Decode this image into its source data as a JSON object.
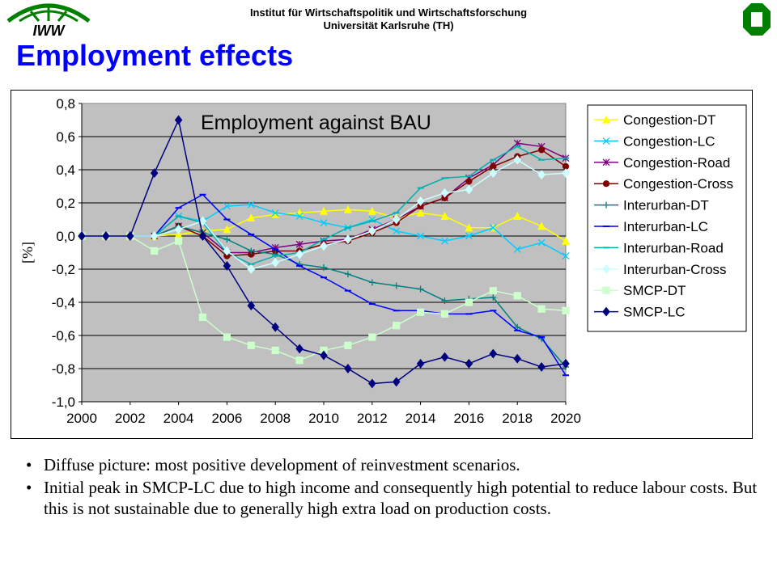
{
  "header": {
    "institute_line1": "Institut für Wirtschaftspolitik und Wirtschaftsforschung",
    "institute_line2": "Universität Karlsruhe (TH)",
    "logo_left_text": "IWW"
  },
  "slide_title": "Employment effects",
  "colors": {
    "title": "#0000ff",
    "plot_bg": "#c0c0c0"
  },
  "chart_data": {
    "type": "line",
    "title": "Employment against BAU",
    "xlabel": "",
    "ylabel": "[%]",
    "ylim": [
      -1.0,
      0.8
    ],
    "xlim": [
      2000,
      2020
    ],
    "yticks": [
      "0,8",
      "0,6",
      "0,4",
      "0,2",
      "0,0",
      "-0,2",
      "-0,4",
      "-0,6",
      "-0,8",
      "-1,0"
    ],
    "ytick_values": [
      0.8,
      0.6,
      0.4,
      0.2,
      0.0,
      -0.2,
      -0.4,
      -0.6,
      -0.8,
      -1.0
    ],
    "xticks": [
      "2000",
      "2002",
      "2004",
      "2006",
      "2008",
      "2010",
      "2012",
      "2014",
      "2016",
      "2018",
      "2020"
    ],
    "grid": true,
    "legend_position": "right",
    "x": [
      2000,
      2001,
      2002,
      2003,
      2004,
      2005,
      2006,
      2007,
      2008,
      2009,
      2010,
      2011,
      2012,
      2013,
      2014,
      2015,
      2016,
      2017,
      2018,
      2019,
      2020
    ],
    "series": [
      {
        "name": "Congestion-DT",
        "color": "#ffff00",
        "marker": "triangle",
        "values": [
          0,
          0,
          0,
          0,
          0.01,
          0.03,
          0.04,
          0.11,
          0.13,
          0.14,
          0.15,
          0.16,
          0.15,
          0.11,
          0.14,
          0.12,
          0.05,
          0.05,
          0.12,
          0.06,
          -0.03
        ]
      },
      {
        "name": "Congestion-LC",
        "color": "#00ccff",
        "marker": "x",
        "values": [
          0,
          0,
          0,
          0,
          0.12,
          0.09,
          0.18,
          0.19,
          0.14,
          0.12,
          0.08,
          0.05,
          0.1,
          0.03,
          0,
          -0.03,
          0,
          0.05,
          -0.08,
          -0.04,
          -0.12
        ]
      },
      {
        "name": "Congestion-Road",
        "color": "#800080",
        "marker": "star",
        "values": [
          0,
          0,
          0,
          0,
          0.06,
          0.02,
          -0.1,
          -0.1,
          -0.07,
          -0.05,
          -0.03,
          -0.02,
          0.04,
          0.1,
          0.18,
          0.23,
          0.35,
          0.43,
          0.56,
          0.54,
          0.47
        ]
      },
      {
        "name": "Congestion-Cross",
        "color": "#800000",
        "marker": "circle",
        "values": [
          0,
          0,
          0,
          0,
          0.06,
          0.0,
          -0.12,
          -0.11,
          -0.09,
          -0.09,
          -0.05,
          -0.03,
          0.02,
          0.08,
          0.18,
          0.23,
          0.33,
          0.42,
          0.48,
          0.52,
          0.42
        ]
      },
      {
        "name": "Interurban-DT",
        "color": "#008080",
        "marker": "plus",
        "values": [
          0,
          0,
          0,
          0,
          0.06,
          0.02,
          -0.02,
          -0.09,
          -0.11,
          -0.17,
          -0.19,
          -0.23,
          -0.28,
          -0.3,
          -0.32,
          -0.39,
          -0.38,
          -0.37,
          -0.55,
          -0.62,
          -0.79
        ]
      },
      {
        "name": "Interurban-LC",
        "color": "#0000ff",
        "marker": "dash",
        "values": [
          0,
          0,
          0,
          0,
          0.17,
          0.25,
          0.1,
          0.01,
          -0.08,
          -0.18,
          -0.25,
          -0.33,
          -0.41,
          -0.45,
          -0.45,
          -0.47,
          -0.47,
          -0.45,
          -0.57,
          -0.61,
          -0.84
        ]
      },
      {
        "name": "Interurban-Road",
        "color": "#00b0b0",
        "marker": "dash",
        "values": [
          0,
          0,
          0,
          0,
          0.12,
          0.08,
          -0.1,
          -0.17,
          -0.12,
          -0.1,
          -0.02,
          0.05,
          0.09,
          0.14,
          0.29,
          0.35,
          0.36,
          0.46,
          0.54,
          0.46,
          0.47
        ]
      },
      {
        "name": "Interurban-Cross",
        "color": "#ccffff",
        "marker": "diamond",
        "values": [
          0,
          0,
          0,
          0,
          0.04,
          0.09,
          -0.09,
          -0.2,
          -0.16,
          -0.11,
          -0.06,
          -0.02,
          0.03,
          0.1,
          0.21,
          0.26,
          0.28,
          0.38,
          0.46,
          0.37,
          0.38
        ]
      },
      {
        "name": "SMCP-DT",
        "color": "#ccffcc",
        "marker": "square",
        "values": [
          0,
          0,
          0,
          -0.09,
          -0.03,
          -0.49,
          -0.61,
          -0.66,
          -0.69,
          -0.75,
          -0.69,
          -0.66,
          -0.61,
          -0.54,
          -0.46,
          -0.47,
          -0.4,
          -0.33,
          -0.36,
          -0.44,
          -0.45
        ]
      },
      {
        "name": "SMCP-LC",
        "color": "#000080",
        "marker": "diamond",
        "values": [
          0,
          0,
          0,
          0.38,
          0.7,
          0,
          -0.18,
          -0.42,
          -0.55,
          -0.68,
          -0.72,
          -0.8,
          -0.89,
          -0.88,
          -0.77,
          -0.73,
          -0.77,
          -0.71,
          -0.74,
          -0.79,
          -0.77
        ]
      }
    ]
  },
  "bullets": [
    "Diffuse picture: most positive development of reinvestment scenarios.",
    "Initial peak in SMCP-LC due to high income and consequently high potential to reduce labour costs. But this is not sustainable due to generally high extra load on production costs."
  ]
}
